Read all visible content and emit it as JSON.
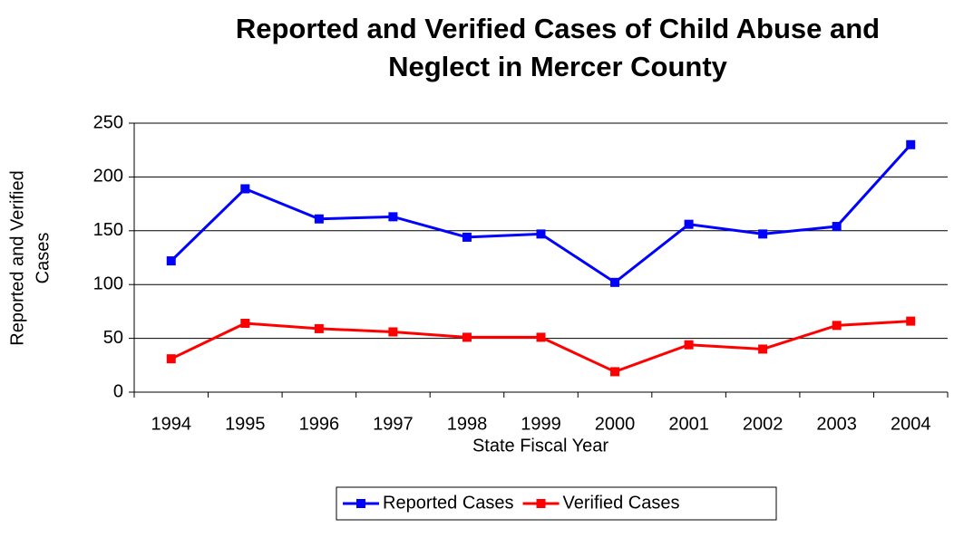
{
  "chart_data": {
    "type": "line",
    "title": [
      "Reported and Verified Cases of Child Abuse and",
      "Neglect in Mercer County"
    ],
    "x_label": "State Fiscal Year",
    "y_label": [
      "Reported and Verified",
      "Cases"
    ],
    "categories": [
      "1994",
      "1995",
      "1996",
      "1997",
      "1998",
      "1999",
      "2000",
      "2001",
      "2002",
      "2003",
      "2004"
    ],
    "series": [
      {
        "name": "Reported Cases",
        "color": "#0000ff",
        "values": [
          122,
          189,
          161,
          163,
          144,
          147,
          102,
          156,
          147,
          154,
          230
        ]
      },
      {
        "name": "Verified Cases",
        "color": "#ff0000",
        "values": [
          31,
          64,
          59,
          56,
          51,
          51,
          19,
          44,
          40,
          62,
          66
        ]
      }
    ],
    "ylim": [
      0,
      250
    ],
    "yticks": [
      0,
      50,
      100,
      150,
      200,
      250
    ],
    "grid": true,
    "legend": "bottom"
  }
}
